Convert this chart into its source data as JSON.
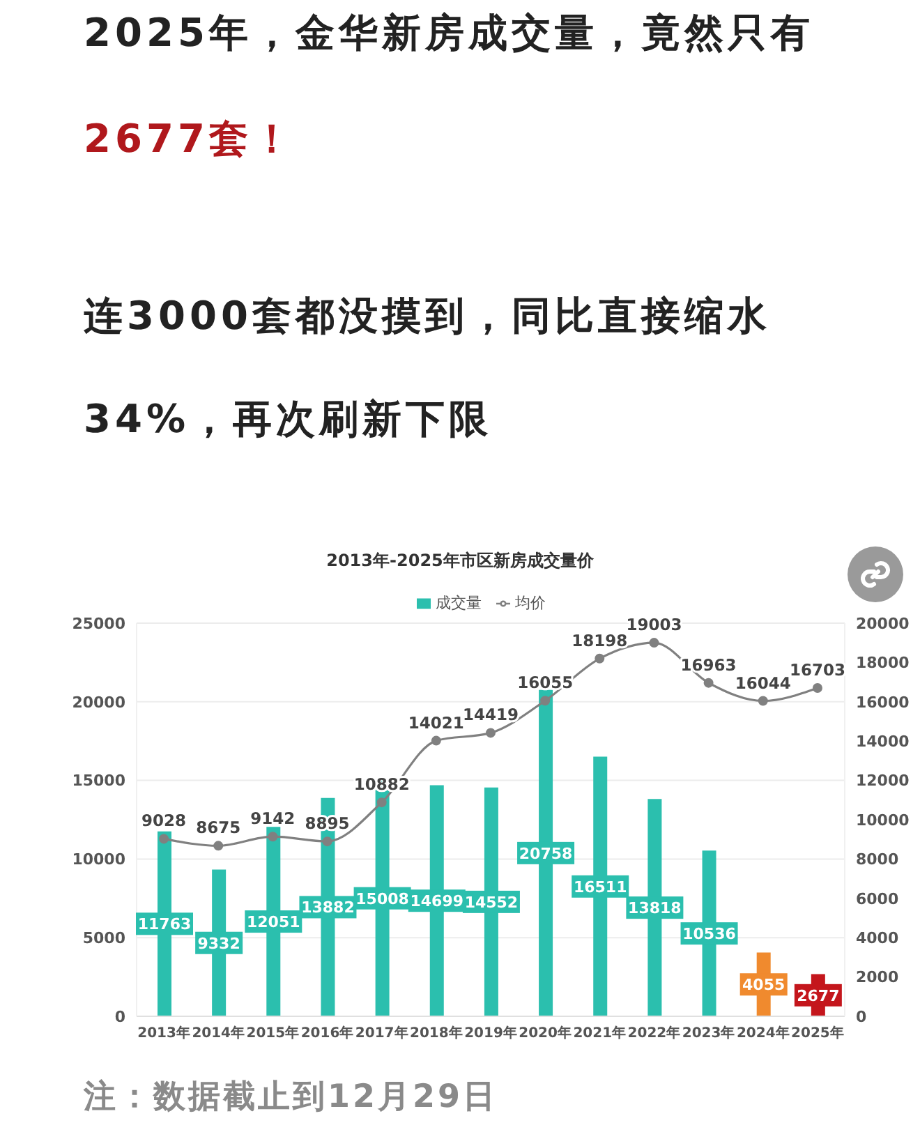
{
  "chart_data": {
    "type": "bar",
    "title": "2013年-2025年市区新房成交量价",
    "annotations": [
      "2025年，金华新房成交量，竟然只有",
      "2677套！",
      "连3000套都没摸到，同比直接缩水34%，再次刷新下限",
      "注：数据截止到12月29日"
    ],
    "categories": [
      "2013年",
      "2014年",
      "2015年",
      "2016年",
      "2017年",
      "2018年",
      "2019年",
      "2020年",
      "2021年",
      "2022年",
      "2023年",
      "2024年",
      "2025年"
    ],
    "series": [
      {
        "name": "成交量",
        "color": "#2bbfae",
        "colors": [
          "#2bbfae",
          "#2bbfae",
          "#2bbfae",
          "#2bbfae",
          "#2bbfae",
          "#2bbfae",
          "#2bbfae",
          "#2bbfae",
          "#2bbfae",
          "#2bbfae",
          "#2bbfae",
          "#f08a2e",
          "#c4161c"
        ],
        "values": [
          11763,
          9332,
          12051,
          13882,
          15008,
          14699,
          14552,
          20758,
          16511,
          13818,
          10536,
          4055,
          2677
        ]
      },
      {
        "name": "均价",
        "type": "line",
        "axis": "y2",
        "color": "#808080",
        "values": [
          9028,
          8675,
          9142,
          8895,
          10882,
          14021,
          14419,
          16055,
          18198,
          19003,
          16963,
          16044,
          16703
        ]
      }
    ],
    "ylim": [
      0,
      25000
    ],
    "yticks": [
      0,
      5000,
      10000,
      15000,
      20000,
      25000
    ],
    "y2lim": [
      0,
      20000
    ],
    "y2ticks": [
      0,
      2000,
      4000,
      6000,
      8000,
      10000,
      12000,
      14000,
      16000,
      18000,
      20000
    ],
    "grid": "y",
    "legend": "top",
    "marker": "circle",
    "data_labels": true
  }
}
